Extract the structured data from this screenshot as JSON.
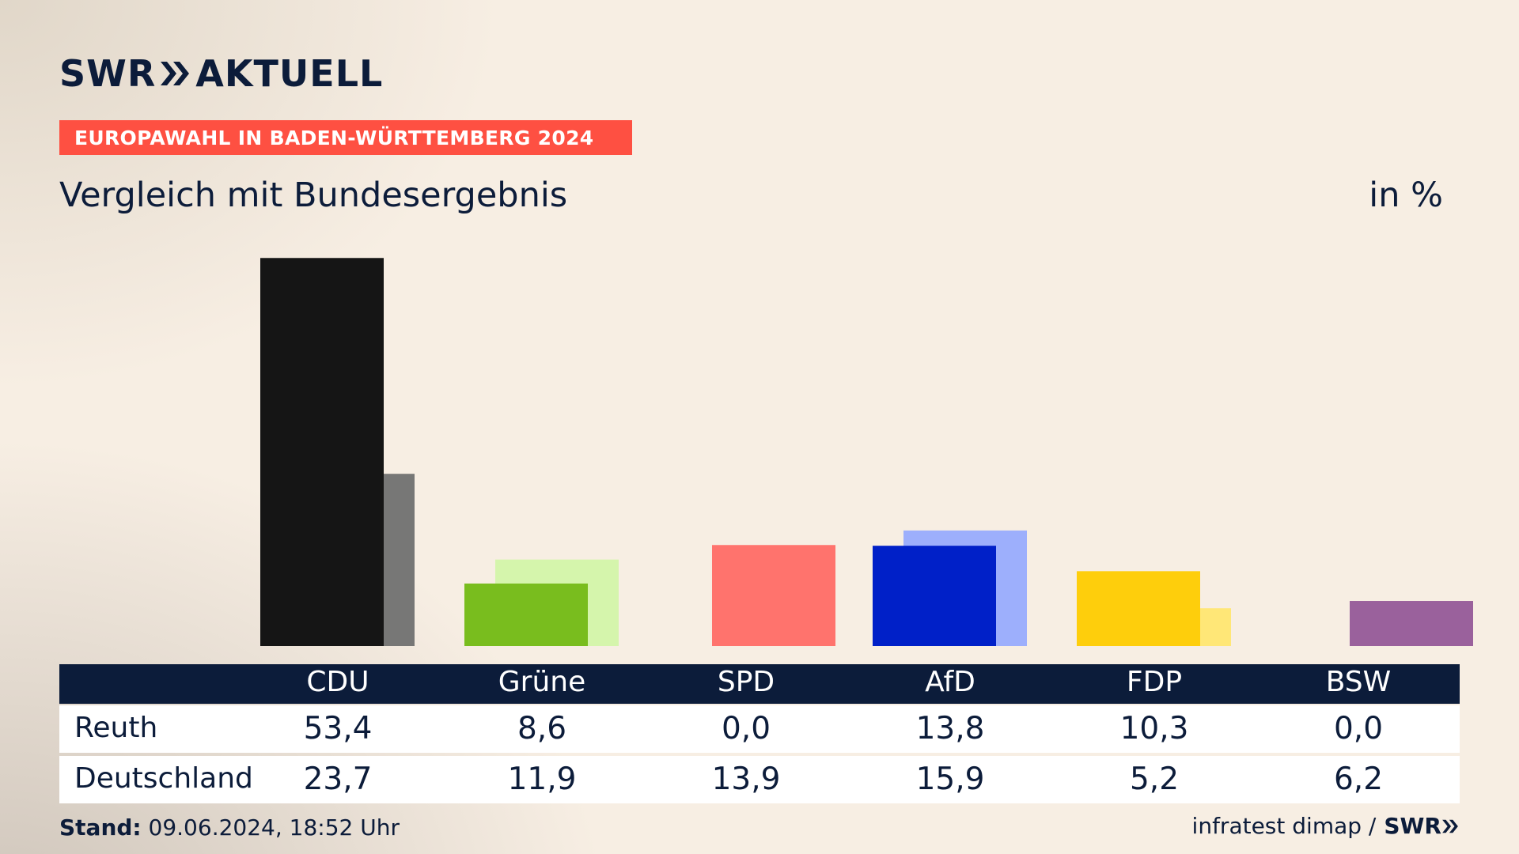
{
  "header": {
    "brand_swr": "SWR",
    "brand_aktuell": "AKTUELL",
    "banner": "EUROPAWAHL IN BADEN-WÜRTTEMBERG 2024",
    "subtitle": "Vergleich mit Bundesergebnis",
    "unit": "in %"
  },
  "colors": {
    "navy": "#0c1c3a",
    "banner": "#fe5042"
  },
  "chart_data": {
    "type": "bar",
    "title": "Vergleich mit Bundesergebnis",
    "ylabel": "in %",
    "categories": [
      "CDU",
      "Grüne",
      "SPD",
      "AfD",
      "FDP",
      "BSW"
    ],
    "series": [
      {
        "name": "Reuth",
        "values": [
          53.4,
          8.6,
          0.0,
          13.8,
          10.3,
          0.0
        ],
        "colors": [
          "#151515",
          "#79bd1e",
          "#ff736d",
          "#0020c8",
          "#fece0c",
          "#9a619c"
        ]
      },
      {
        "name": "Deutschland",
        "values": [
          23.7,
          11.9,
          13.9,
          15.9,
          5.2,
          6.2
        ],
        "colors": [
          "#777776",
          "#d5f5ac",
          "#ff736d",
          "#9daffc",
          "#ffe777",
          "#9a619c"
        ]
      }
    ],
    "display": {
      "Reuth": [
        "53,4",
        "8,6",
        "0,0",
        "13,8",
        "10,3",
        "0,0"
      ],
      "Deutschland": [
        "23,7",
        "11,9",
        "13,9",
        "15,9",
        "5,2",
        "6,2"
      ]
    },
    "grid": false
  },
  "table": {
    "row1_label": "Reuth",
    "row2_label": "Deutschland"
  },
  "footer": {
    "stand_label": "Stand:",
    "stand_value": "09.06.2024, 18:52 Uhr",
    "source": "infratest dimap /",
    "swr": "SWR"
  }
}
